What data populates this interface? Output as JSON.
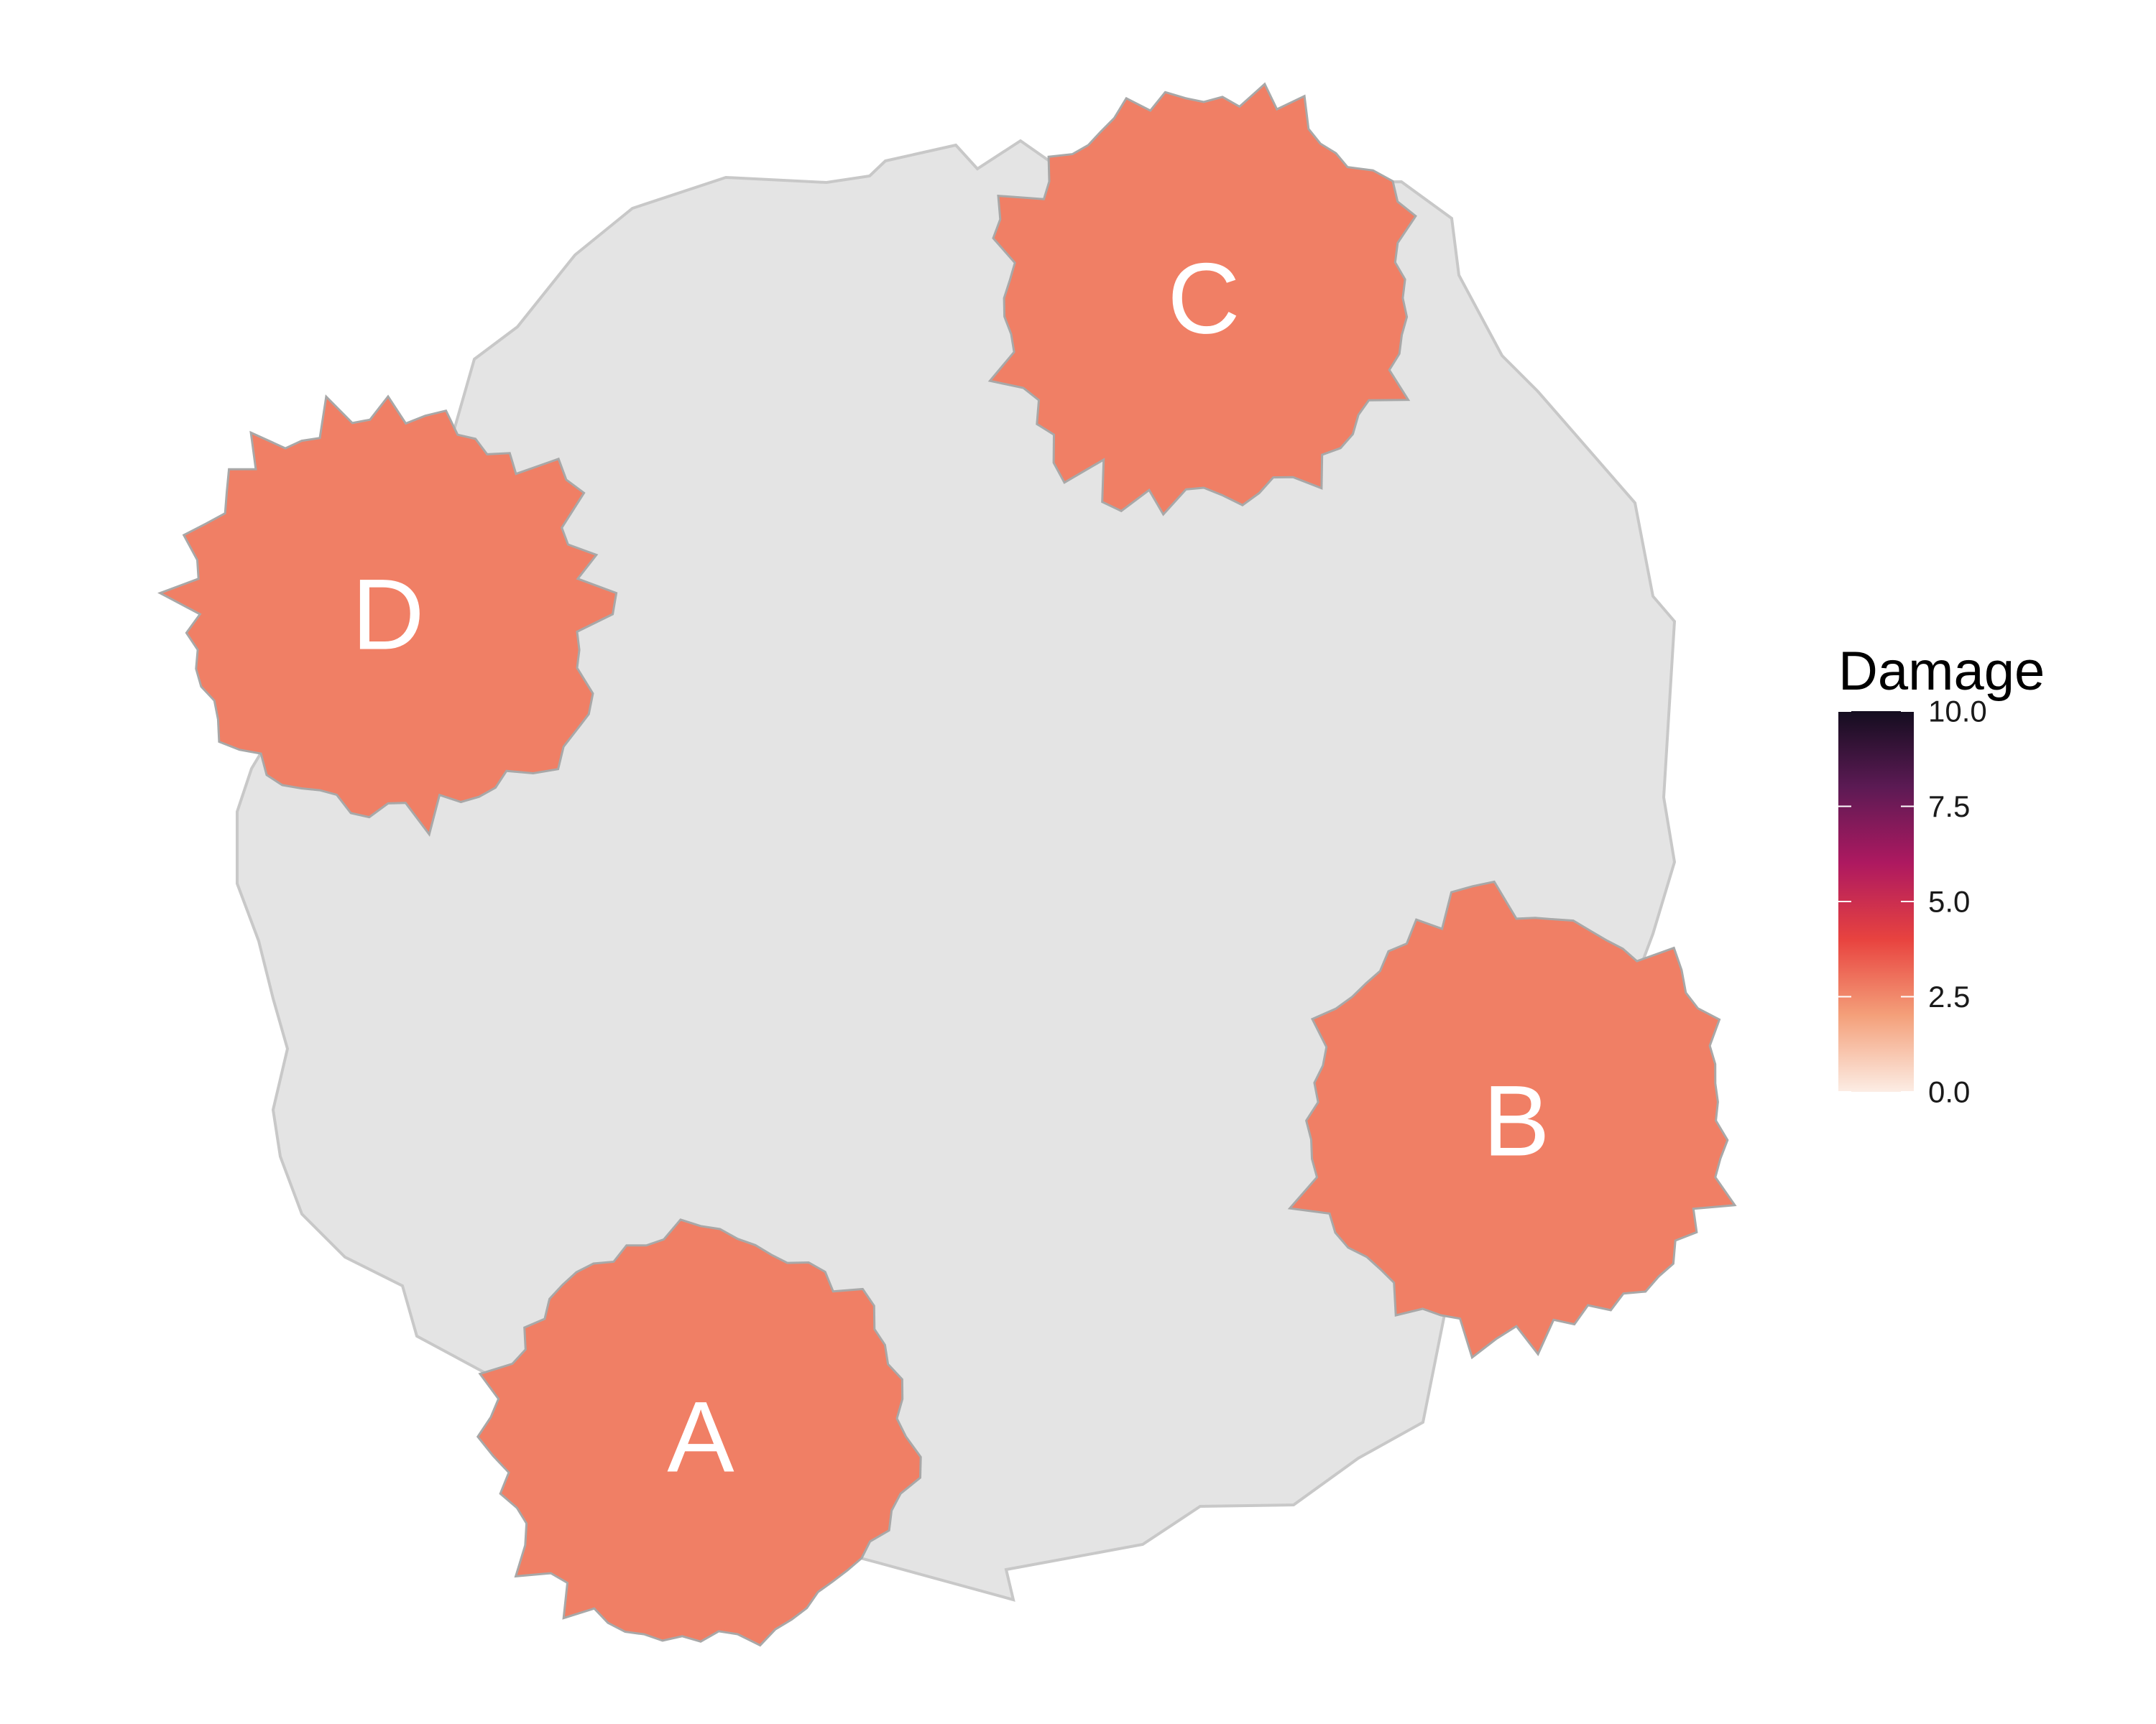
{
  "colors": {
    "base_fill": "#e4e4e4",
    "base_stroke": "#c8c8c8",
    "patch_stroke": "#a8a8a8",
    "label_color": "#ffffff"
  },
  "regions": [
    {
      "label": "A",
      "damage": 2.7
    },
    {
      "label": "B",
      "damage": 2.7
    },
    {
      "label": "C",
      "damage": 2.7
    },
    {
      "label": "D",
      "damage": 2.7
    }
  ],
  "legend": {
    "title": "Damage",
    "min": 0,
    "max": 10,
    "ticks": [
      "10.0",
      "7.5",
      "5.0",
      "2.5",
      "0.0"
    ],
    "tick_values": [
      10,
      7.5,
      5,
      2.5,
      0
    ],
    "gradient_colors": [
      "#fcede4",
      "#f4a07a",
      "#e8433f",
      "#ae1960",
      "#5c1a54",
      "#140d1f"
    ]
  }
}
